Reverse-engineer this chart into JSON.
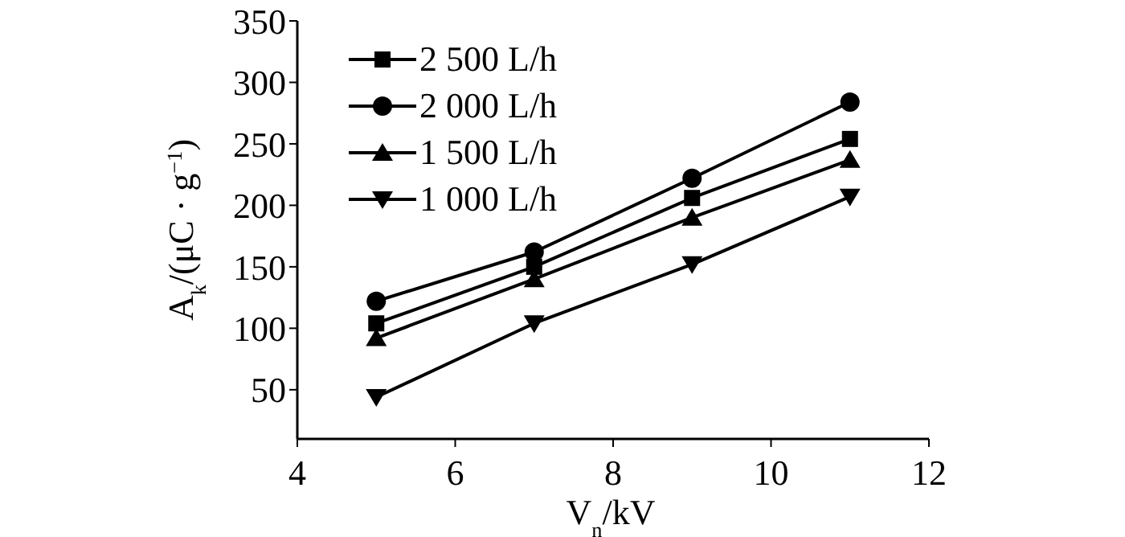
{
  "chart_data": {
    "type": "line",
    "xlabel": "V$_{n}$/kV",
    "ylabel": "A$_{k}$/(μC · g$^{−1}$)",
    "x": [
      5,
      7,
      9,
      11
    ],
    "series": [
      {
        "name": "2 500 L/h",
        "color": "#000000",
        "marker": "square",
        "values": [
          104,
          150,
          206,
          254
        ]
      },
      {
        "name": "2 000 L/h",
        "color": "#000000",
        "marker": "circle",
        "values": [
          122,
          162,
          222,
          284
        ]
      },
      {
        "name": "1 500 L/h",
        "color": "#000000",
        "marker": "triangle",
        "values": [
          92,
          140,
          190,
          237
        ]
      },
      {
        "name": "1 000 L/h",
        "color": "#000000",
        "marker": "triangle-down",
        "values": [
          44,
          104,
          152,
          207
        ]
      }
    ],
    "xlim": [
      4,
      12
    ],
    "xticks": [
      4,
      6,
      8,
      10,
      12
    ],
    "ylim": [
      10,
      350
    ],
    "yticks": [
      50,
      100,
      150,
      200,
      250,
      300,
      350
    ],
    "legend": "top left",
    "grid": false
  }
}
